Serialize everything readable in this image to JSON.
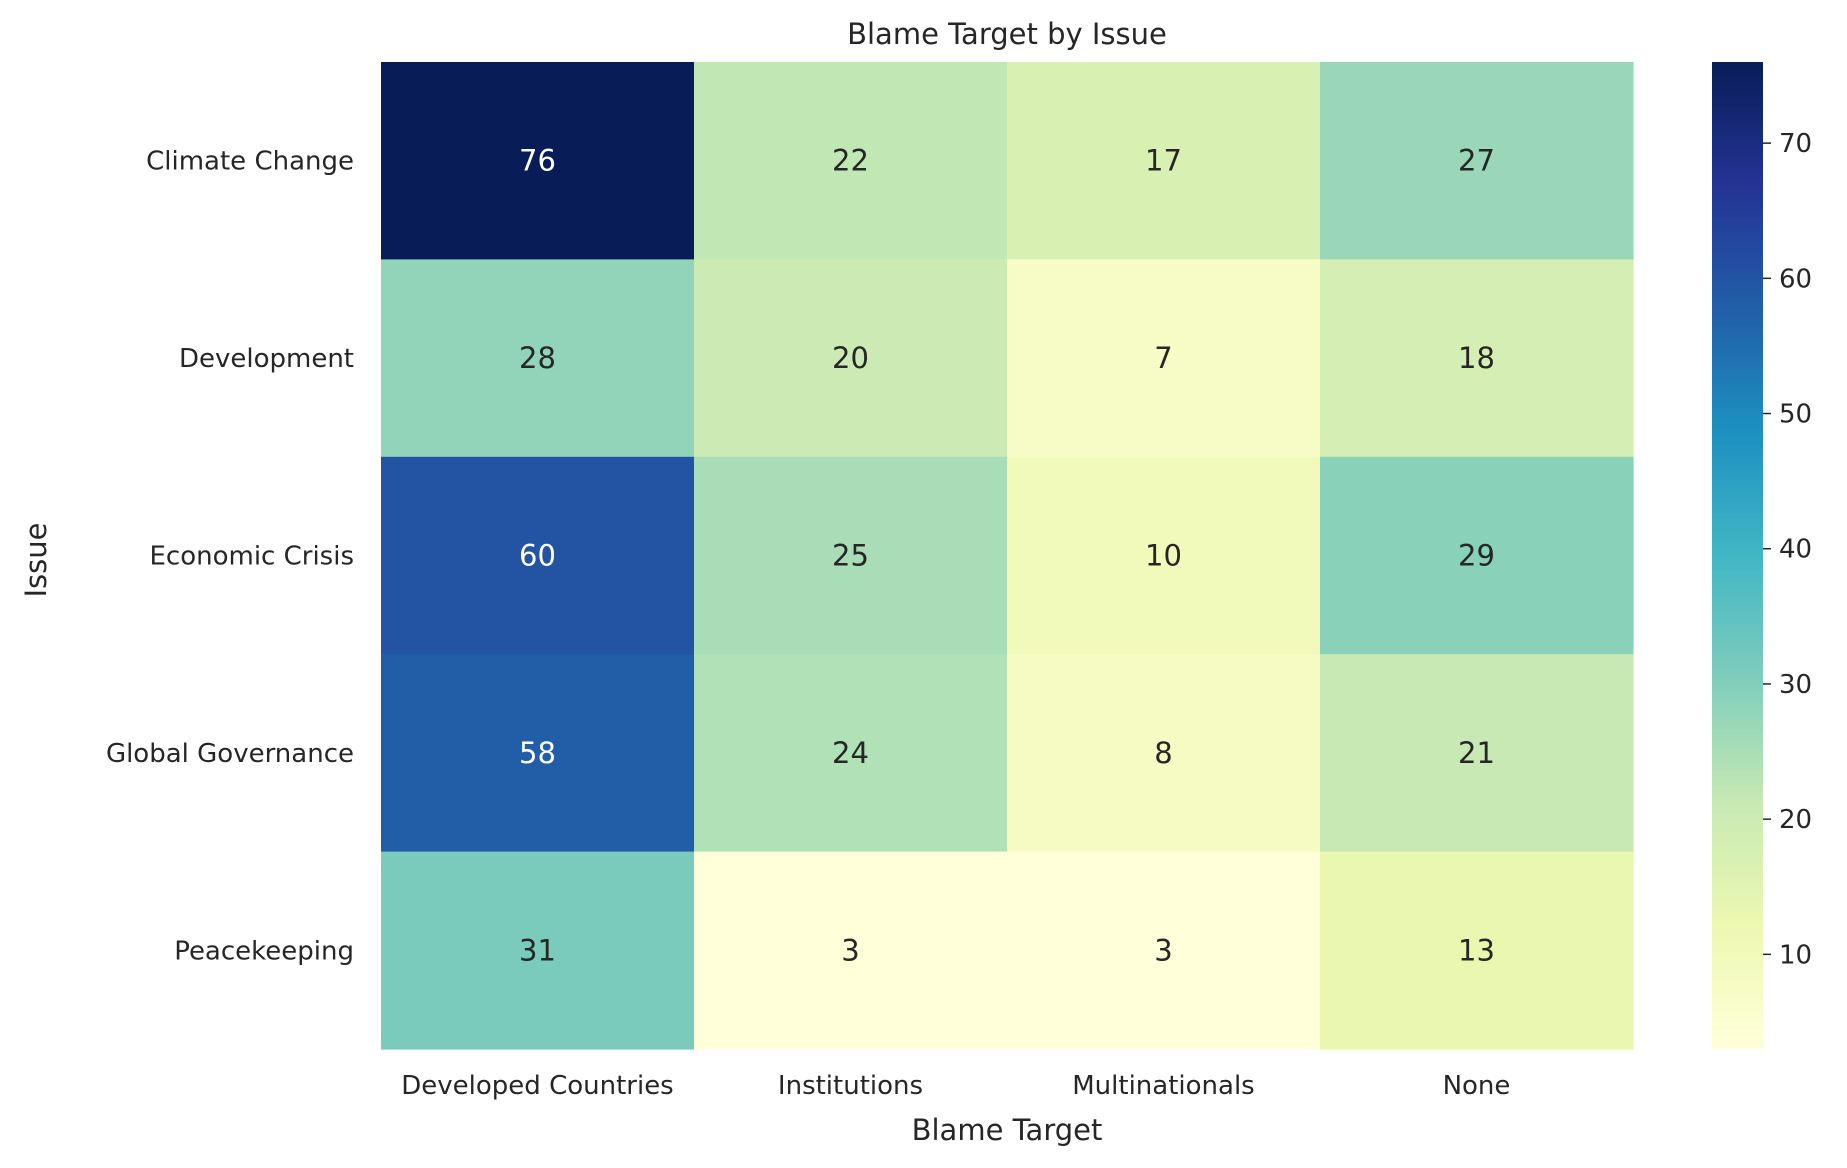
{
  "chart_data": {
    "type": "heatmap",
    "title": "Blame Target by Issue",
    "xlabel": "Blame Target",
    "ylabel": "Issue",
    "x_categories": [
      "Developed Countries",
      "Institutions",
      "Multinationals",
      "None"
    ],
    "y_categories": [
      "Climate Change",
      "Development",
      "Economic Crisis",
      "Global Governance",
      "Peacekeeping"
    ],
    "values": [
      [
        76,
        22,
        17,
        27
      ],
      [
        28,
        20,
        7,
        18
      ],
      [
        60,
        25,
        10,
        29
      ],
      [
        58,
        24,
        8,
        21
      ],
      [
        31,
        3,
        3,
        13
      ]
    ],
    "colormap": "YlGnBu",
    "color_range": [
      3,
      76
    ],
    "colorbar_ticks": [
      10,
      20,
      30,
      40,
      50,
      60,
      70
    ],
    "grid": false
  }
}
